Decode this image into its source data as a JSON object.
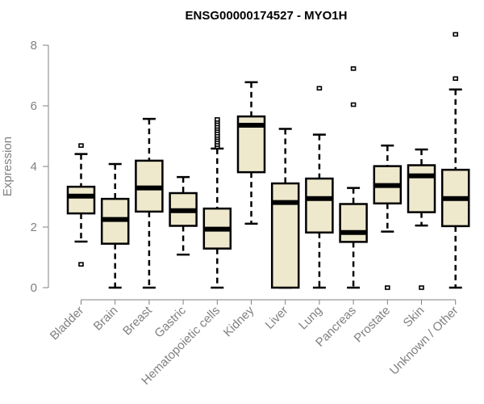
{
  "chart_data": {
    "type": "box",
    "title": "ENSG00000174527 - MYO1H",
    "xlabel": "",
    "ylabel": "Expression",
    "ylim": [
      0,
      8
    ],
    "yticks": [
      "0",
      "2",
      "4",
      "6",
      "8"
    ],
    "box_fill": "#EEE8CD",
    "categories": [
      "Bladder",
      "Brain",
      "Breast",
      "Gastric",
      "Hematopoietic cells",
      "Kidney",
      "Liver",
      "Lung",
      "Pancreas",
      "Prostate",
      "Skin",
      "Unknown / Other"
    ],
    "boxes": [
      {
        "low": 1.52,
        "q1": 2.45,
        "median": 3.02,
        "q3": 3.33,
        "high": 4.41,
        "outliers": [
          4.69,
          0.77
        ]
      },
      {
        "low": 0,
        "q1": 1.45,
        "median": 2.25,
        "q3": 2.93,
        "high": 4.08,
        "outliers": []
      },
      {
        "low": 0,
        "q1": 2.51,
        "median": 3.29,
        "q3": 4.19,
        "high": 5.57,
        "outliers": []
      },
      {
        "low": 1.09,
        "q1": 2.04,
        "median": 2.54,
        "q3": 3.12,
        "high": 3.65,
        "outliers": []
      },
      {
        "low": 0,
        "q1": 1.29,
        "median": 1.93,
        "q3": 2.61,
        "high": 4.59,
        "outliers": [
          4.65,
          4.72,
          4.8,
          4.88,
          4.95,
          5.02,
          5.1,
          5.18,
          5.25,
          5.32,
          5.4,
          5.48,
          5.55
        ]
      },
      {
        "low": 2.11,
        "q1": 3.81,
        "median": 5.36,
        "q3": 5.65,
        "high": 6.78,
        "outliers": []
      },
      {
        "low": 0,
        "q1": 0,
        "median": 2.81,
        "q3": 3.44,
        "high": 5.24,
        "outliers": []
      },
      {
        "low": 0,
        "q1": 1.82,
        "median": 2.94,
        "q3": 3.6,
        "high": 5.05,
        "outliers": [
          6.58
        ]
      },
      {
        "low": 0,
        "q1": 1.51,
        "median": 1.82,
        "q3": 2.76,
        "high": 3.29,
        "outliers": [
          7.23,
          6.04
        ]
      },
      {
        "low": 1.85,
        "q1": 2.78,
        "median": 3.37,
        "q3": 4.01,
        "high": 4.69,
        "outliers": [
          0
        ]
      },
      {
        "low": 2.05,
        "q1": 2.49,
        "median": 3.69,
        "q3": 4.04,
        "high": 4.56,
        "outliers": [
          0
        ]
      },
      {
        "low": 0,
        "q1": 2.03,
        "median": 2.94,
        "q3": 3.89,
        "high": 6.54,
        "outliers": [
          8.36,
          6.9
        ]
      }
    ]
  }
}
